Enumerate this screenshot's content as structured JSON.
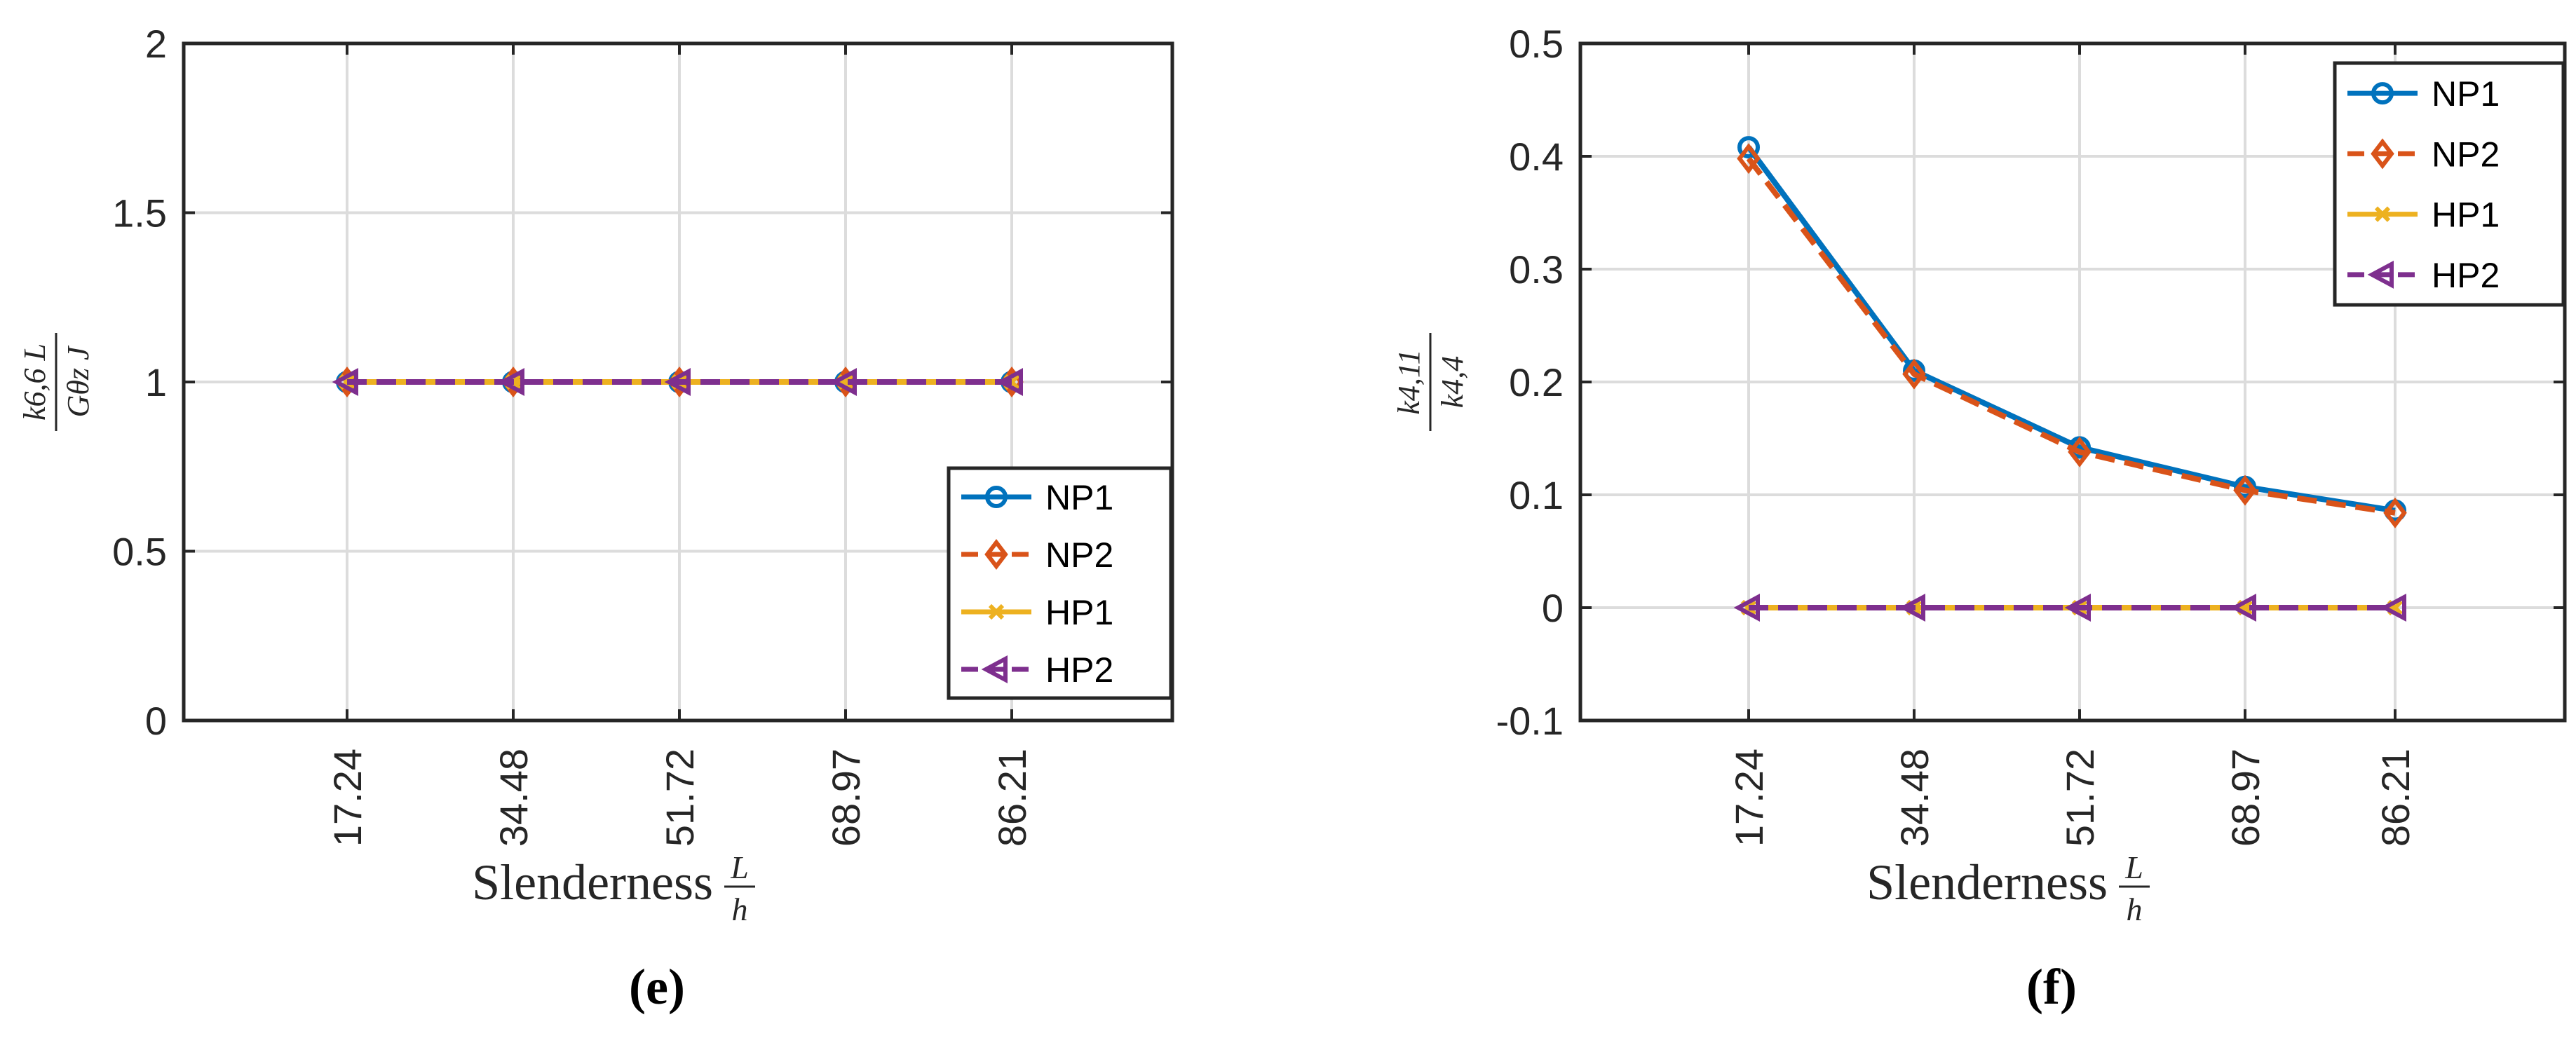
{
  "chart_data": [
    {
      "type": "line",
      "panel": "(e)",
      "x": [
        "17.24",
        "34.48",
        "51.72",
        "68.97",
        "86.21"
      ],
      "xlabel": "Slenderness",
      "xlabel_fraction": {
        "num": "L",
        "den": "h"
      },
      "ylabel": {
        "num": "k6,6 L",
        "den": "Gθz J"
      },
      "ylim": [
        0,
        2
      ],
      "yticks": [
        "0",
        "0.5",
        "1",
        "1.5",
        "2"
      ],
      "grid": true,
      "legend": "bottom-right",
      "series": [
        {
          "name": "NP1",
          "values": [
            1,
            1,
            1,
            1,
            1
          ],
          "color": "#0072BD",
          "marker": "circle",
          "dash": "solid"
        },
        {
          "name": "NP2",
          "values": [
            1,
            1,
            1,
            1,
            1
          ],
          "color": "#D95319",
          "marker": "diamond",
          "dash": "dashed"
        },
        {
          "name": "HP1",
          "values": [
            1,
            1,
            1,
            1,
            1
          ],
          "color": "#EDB120",
          "marker": "x",
          "dash": "solid"
        },
        {
          "name": "HP2",
          "values": [
            1,
            1,
            1,
            1,
            1
          ],
          "color": "#7E2F8E",
          "marker": "triangle-left",
          "dash": "dashed"
        }
      ]
    },
    {
      "type": "line",
      "panel": "(f)",
      "x": [
        "17.24",
        "34.48",
        "51.72",
        "68.97",
        "86.21"
      ],
      "xlabel": "Slenderness",
      "xlabel_fraction": {
        "num": "L",
        "den": "h"
      },
      "ylabel": {
        "num": "k4,11",
        "den": "k4,4"
      },
      "ylim": [
        -0.1,
        0.5
      ],
      "yticks": [
        "-0.1",
        "0",
        "0.1",
        "0.2",
        "0.3",
        "0.4",
        "0.5"
      ],
      "grid": true,
      "legend": "top-right",
      "series": [
        {
          "name": "NP1",
          "values": [
            0.408,
            0.21,
            0.142,
            0.107,
            0.086
          ],
          "color": "#0072BD",
          "marker": "circle",
          "dash": "solid"
        },
        {
          "name": "NP2",
          "values": [
            0.398,
            0.207,
            0.138,
            0.104,
            0.084
          ],
          "color": "#D95319",
          "marker": "diamond",
          "dash": "dashed"
        },
        {
          "name": "HP1",
          "values": [
            0,
            0,
            0,
            0,
            0
          ],
          "color": "#EDB120",
          "marker": "x",
          "dash": "solid"
        },
        {
          "name": "HP2",
          "values": [
            0,
            0,
            0,
            0,
            0
          ],
          "color": "#7E2F8E",
          "marker": "triangle-left",
          "dash": "dashed"
        }
      ]
    }
  ]
}
